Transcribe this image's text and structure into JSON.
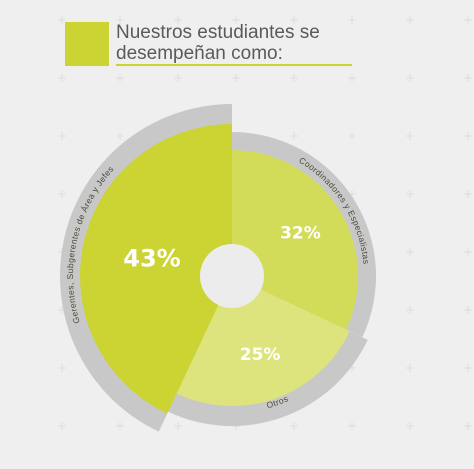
{
  "title": "Nuestros estudiantes se desempeñan como:",
  "colors": {
    "background": "#efefef",
    "accent": "#cbd433",
    "ring": "#c8c8c8",
    "hole": "#ececec"
  },
  "chart_data": {
    "type": "pie",
    "series": [
      {
        "name": "Coordinadores y Especialistas",
        "value": 32,
        "label": "32%",
        "color": "#d3dc58"
      },
      {
        "name": "Otros",
        "value": 25,
        "label": "25%",
        "color": "#dde47e"
      },
      {
        "name": "Gerentes, Subgerentes de Área y Jefes",
        "value": 43,
        "label": "43%",
        "color": "#cbd433"
      }
    ]
  }
}
